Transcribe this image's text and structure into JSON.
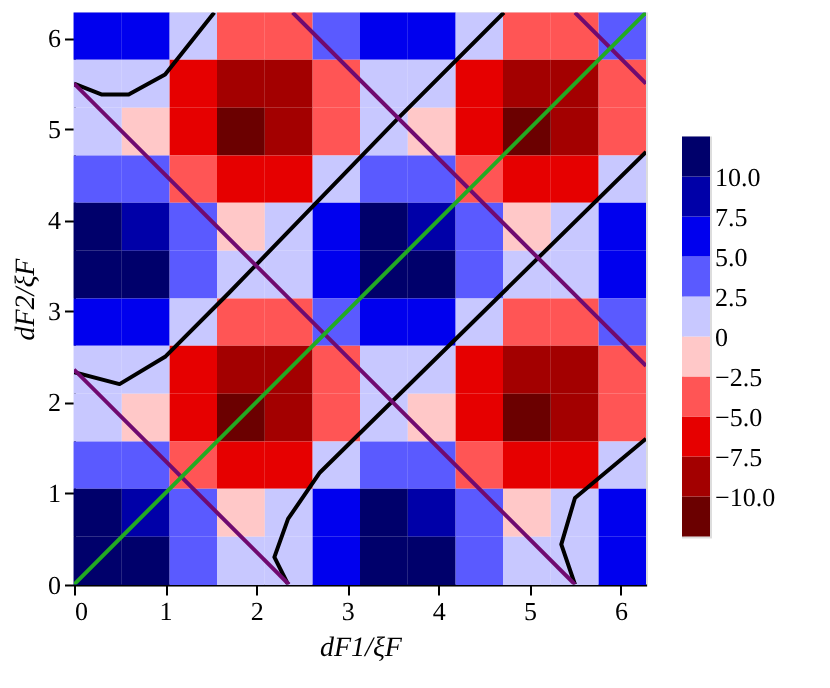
{
  "chart_data": {
    "type": "heatmap",
    "xlabel": "dF1/ξF",
    "ylabel": "dF2/ξF",
    "x": [
      0.26,
      0.79,
      1.31,
      1.83,
      2.36,
      2.88,
      3.4,
      3.93,
      4.45,
      4.97,
      5.5,
      6.02
    ],
    "y": [
      6.02,
      5.5,
      4.97,
      4.45,
      3.93,
      3.4,
      2.88,
      2.36,
      1.83,
      1.31,
      0.79,
      0.26
    ],
    "cells": [
      [
        7,
        6,
        0,
        -4,
        -3,
        3,
        7,
        6,
        0,
        -4,
        -3,
        3
      ],
      [
        1,
        0,
        -6,
        -10,
        -8,
        -3,
        1,
        0,
        -6,
        -10,
        -8,
        -3
      ],
      [
        0,
        -1,
        -7,
        -11,
        -10,
        -4,
        0,
        -1,
        -7,
        -11,
        -10,
        -4
      ],
      [
        4,
        3,
        -3,
        -7,
        -6,
        0,
        4,
        3,
        -3,
        -7,
        -6,
        0
      ],
      [
        10,
        8,
        3,
        -1,
        0,
        6,
        10,
        8,
        3,
        -1,
        0,
        6
      ],
      [
        11,
        10,
        4,
        0,
        1,
        7,
        11,
        10,
        4,
        0,
        1,
        7
      ],
      [
        7,
        6,
        0,
        -4,
        -3,
        3,
        7,
        6,
        0,
        -4,
        -3,
        3
      ],
      [
        1,
        0,
        -6,
        -10,
        -8,
        -3,
        1,
        0,
        -6,
        -10,
        -8,
        -3
      ],
      [
        0,
        -1,
        -7,
        -11,
        -10,
        -4,
        0,
        -1,
        -7,
        -11,
        -10,
        -4
      ],
      [
        4,
        3,
        -3,
        -7,
        -6,
        0,
        4,
        3,
        -3,
        -7,
        -6,
        0
      ],
      [
        10,
        8,
        3,
        -1,
        0,
        6,
        10,
        8,
        3,
        -1,
        0,
        6
      ],
      [
        11,
        10,
        4,
        0,
        1,
        7,
        11,
        10,
        4,
        0,
        1,
        7
      ]
    ],
    "colors": [
      "#6b0000",
      "#a30000",
      "#e60000",
      "#ff5555",
      "#ffc8c8",
      "#c8c8ff",
      "#5a5aff",
      "#0000ee",
      "#0000a8",
      "#00006b"
    ],
    "clim": [
      -12.5,
      12.5
    ],
    "cticks": [
      {
        "value": -10,
        "label": "−10.0"
      },
      {
        "value": -7.5,
        "label": "−7.5"
      },
      {
        "value": -5,
        "label": "−5.0"
      },
      {
        "value": -2.5,
        "label": "−2.5"
      },
      0,
      {
        "value": 2.5,
        "label": "2.5"
      },
      {
        "value": 5,
        "label": "5.0"
      },
      {
        "value": 7.5,
        "label": "7.5"
      },
      {
        "value": 10,
        "label": "10.0"
      }
    ],
    "xlim": [
      0,
      6.28
    ],
    "ylim": [
      0,
      6.28
    ],
    "xticks": [
      0,
      1,
      2,
      3,
      4,
      5,
      6
    ],
    "yticks": [
      0,
      1,
      2,
      3,
      4,
      5,
      6
    ],
    "series": [
      {
        "type": "line",
        "color": "#000000",
        "x": [
          0,
          0.3,
          0.6,
          1.0,
          1.54
        ],
        "values": [
          5.5,
          5.38,
          5.38,
          5.6,
          6.28
        ]
      },
      {
        "type": "line",
        "color": "#000000",
        "x": [
          0,
          0.5,
          1.0,
          1.7,
          3.56,
          4.72
        ],
        "values": [
          2.33,
          2.2,
          2.5,
          3.2,
          5.12,
          6.28
        ]
      },
      {
        "type": "line",
        "color": "#000000",
        "x": [
          2.35,
          2.2,
          2.35,
          2.7,
          6.28
        ],
        "values": [
          0,
          0.3,
          0.72,
          1.23,
          4.75
        ]
      },
      {
        "type": "line",
        "color": "#000000",
        "x": [
          5.5,
          5.35,
          5.5,
          6.28
        ],
        "values": [
          0,
          0.44,
          0.95,
          1.6
        ]
      },
      {
        "type": "line",
        "color": "#700a70",
        "x": [
          0,
          2.36
        ],
        "values": [
          2.36,
          0
        ]
      },
      {
        "type": "line",
        "color": "#700a70",
        "x": [
          0,
          5.5
        ],
        "values": [
          5.5,
          0
        ]
      },
      {
        "type": "line",
        "color": "#700a70",
        "x": [
          2.4,
          6.28
        ],
        "values": [
          6.28,
          2.4
        ]
      },
      {
        "type": "line",
        "color": "#700a70",
        "x": [
          5.5,
          6.28
        ],
        "values": [
          6.28,
          5.5
        ]
      },
      {
        "type": "line",
        "color": "#22aa22",
        "x": [
          0,
          6.28
        ],
        "values": [
          0,
          6.28
        ]
      }
    ]
  }
}
